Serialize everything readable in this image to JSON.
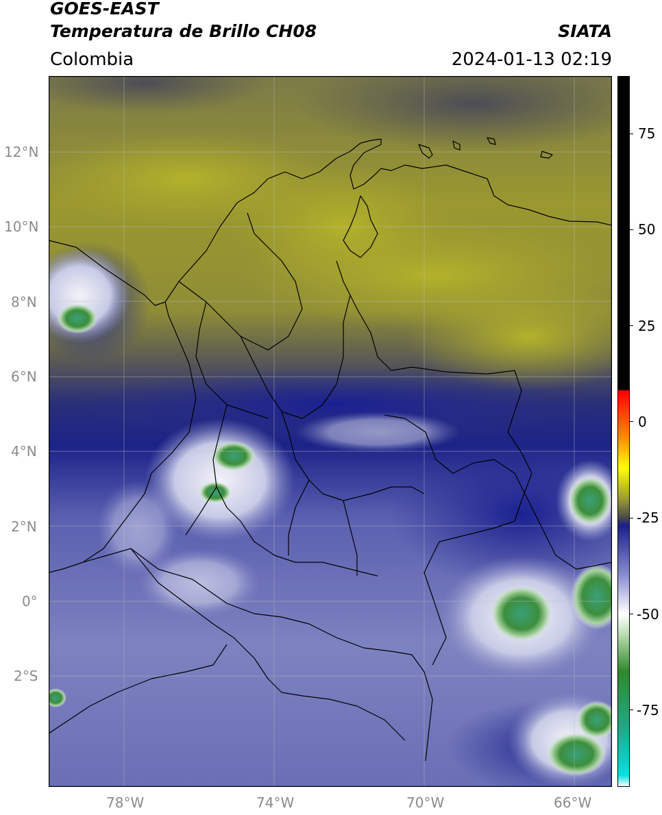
{
  "header": {
    "source": "GOES-EAST",
    "product": "Temperatura de Brillo CH08",
    "region": "Colombia",
    "agency": "SIATA",
    "timestamp": "2024-01-13 02:19"
  },
  "map": {
    "lon_range": [
      -80,
      -65
    ],
    "lat_range": [
      -4.6,
      14.2
    ],
    "lon_ticks": [
      "78°W",
      "74°W",
      "70°W",
      "66°W"
    ],
    "lat_ticks": [
      "12°N",
      "10°N",
      "8°N",
      "6°N",
      "4°N",
      "2°N",
      "0°",
      "2°S"
    ],
    "colors": {
      "warm_layer": "#a8a62e",
      "mid_gray": "#6c6a55",
      "cold_blue": "#232a8c",
      "cool_lavender": "#7f84c0",
      "cloud_white": "#e9ebf4",
      "cloud_green": "#3c9a4e",
      "border": "#000000"
    }
  },
  "colorbar": {
    "ticks": [
      "75",
      "50",
      "25",
      "0",
      "-25",
      "-50",
      "-75"
    ],
    "range": [
      -95,
      90
    ],
    "stops": [
      {
        "value": -95,
        "color": "#ffffff"
      },
      {
        "value": -92,
        "color": "#00e2e2"
      },
      {
        "value": -80,
        "color": "#22a889"
      },
      {
        "value": -65,
        "color": "#2f8a2c"
      },
      {
        "value": -55,
        "color": "#bfe0b8"
      },
      {
        "value": -50,
        "color": "#ffffff"
      },
      {
        "value": -40,
        "color": "#8a8ed0"
      },
      {
        "value": -27,
        "color": "#1a1f8c"
      },
      {
        "value": -25,
        "color": "#4a4a4a"
      },
      {
        "value": -20,
        "color": "#9c9c34"
      },
      {
        "value": -12,
        "color": "#ffff00"
      },
      {
        "value": -5,
        "color": "#ff9900"
      },
      {
        "value": 8,
        "color": "#ff0000"
      },
      {
        "value": 8.5,
        "color": "#000000"
      },
      {
        "value": 90,
        "color": "#000000"
      }
    ]
  }
}
